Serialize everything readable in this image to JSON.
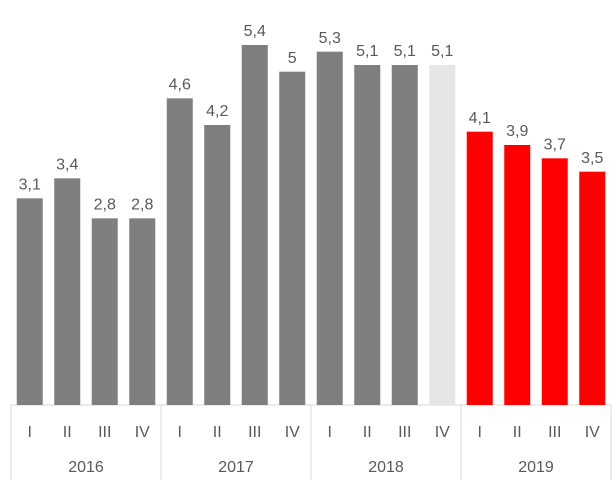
{
  "chart_data": {
    "type": "bar",
    "categories": [
      "I",
      "II",
      "III",
      "IV",
      "I",
      "II",
      "III",
      "IV",
      "I",
      "II",
      "III",
      "IV",
      "I",
      "II",
      "III",
      "IV"
    ],
    "group_labels": [
      "2016",
      "2017",
      "2018",
      "2019"
    ],
    "values": [
      3.1,
      3.4,
      2.8,
      2.8,
      4.6,
      4.2,
      5.4,
      5,
      5.3,
      5.1,
      5.1,
      5.1,
      4.1,
      3.9,
      3.7,
      3.5
    ],
    "value_labels": [
      "3,1",
      "3,4",
      "2,8",
      "2,8",
      "4,6",
      "4,2",
      "5,4",
      "5",
      "5,3",
      "5,1",
      "5,1",
      "5,1",
      "4,1",
      "3,9",
      "3,7",
      "3,5"
    ],
    "colors": [
      "#7f7f7f",
      "#7f7f7f",
      "#7f7f7f",
      "#7f7f7f",
      "#7f7f7f",
      "#7f7f7f",
      "#7f7f7f",
      "#7f7f7f",
      "#7f7f7f",
      "#7f7f7f",
      "#7f7f7f",
      "#e6e6e6",
      "#ff0000",
      "#ff0000",
      "#ff0000",
      "#ff0000"
    ]
  }
}
